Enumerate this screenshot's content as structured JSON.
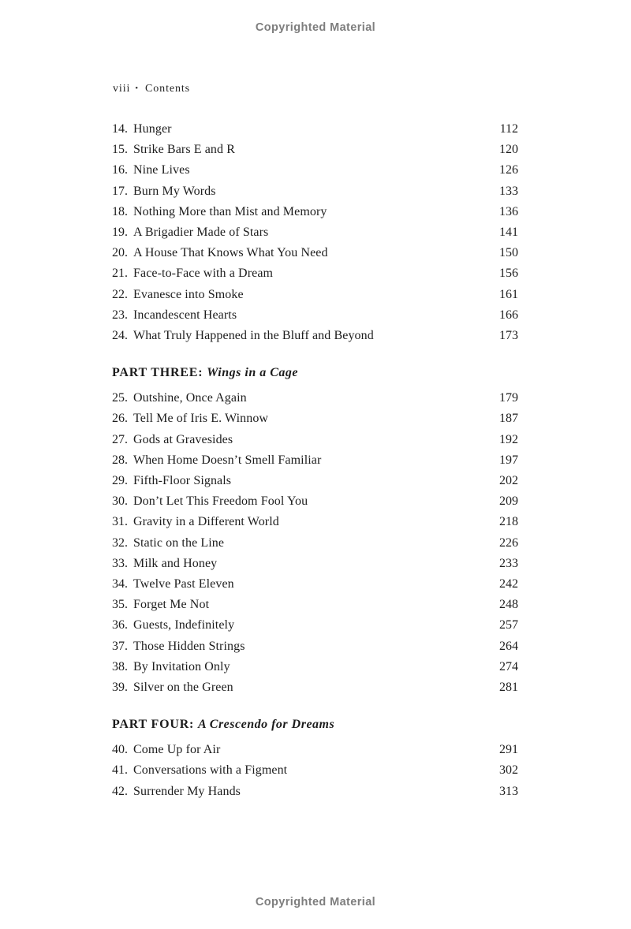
{
  "page": {
    "watermark_top": "Copyrighted Material",
    "watermark_bottom": "Copyrighted Material"
  },
  "header": {
    "folio": "viii",
    "separator": "•",
    "title": "Contents"
  },
  "toc": {
    "sections": [
      {
        "heading": null,
        "items": [
          {
            "num": "14.",
            "title": "Hunger",
            "page": "112"
          },
          {
            "num": "15.",
            "title": "Strike Bars E and R",
            "page": "120"
          },
          {
            "num": "16.",
            "title": "Nine Lives",
            "page": "126"
          },
          {
            "num": "17.",
            "title": "Burn My Words",
            "page": "133"
          },
          {
            "num": "18.",
            "title": "Nothing More than Mist and Memory",
            "page": "136"
          },
          {
            "num": "19.",
            "title": "A Brigadier Made of Stars",
            "page": "141"
          },
          {
            "num": "20.",
            "title": "A House That Knows What You Need",
            "page": "150"
          },
          {
            "num": "21.",
            "title": "Face-to-Face with a Dream",
            "page": "156"
          },
          {
            "num": "22.",
            "title": "Evanesce into Smoke",
            "page": "161"
          },
          {
            "num": "23.",
            "title": "Incandescent Hearts",
            "page": "166"
          },
          {
            "num": "24.",
            "title": "What Truly Happened in the Bluff and Beyond",
            "page": "173"
          }
        ]
      },
      {
        "heading": {
          "label": "PART THREE:",
          "title": "Wings in a Cage"
        },
        "items": [
          {
            "num": "25.",
            "title": "Outshine, Once Again",
            "page": "179"
          },
          {
            "num": "26.",
            "title": "Tell Me of Iris E. Winnow",
            "page": "187"
          },
          {
            "num": "27.",
            "title": "Gods at Gravesides",
            "page": "192"
          },
          {
            "num": "28.",
            "title": "When Home Doesn’t Smell Familiar",
            "page": "197"
          },
          {
            "num": "29.",
            "title": "Fifth-Floor Signals",
            "page": "202"
          },
          {
            "num": "30.",
            "title": "Don’t Let This Freedom Fool You",
            "page": "209"
          },
          {
            "num": "31.",
            "title": "Gravity in a Different World",
            "page": "218"
          },
          {
            "num": "32.",
            "title": "Static on the Line",
            "page": "226"
          },
          {
            "num": "33.",
            "title": "Milk and Honey",
            "page": "233"
          },
          {
            "num": "34.",
            "title": "Twelve Past Eleven",
            "page": "242"
          },
          {
            "num": "35.",
            "title": "Forget Me Not",
            "page": "248"
          },
          {
            "num": "36.",
            "title": "Guests, Indefinitely",
            "page": "257"
          },
          {
            "num": "37.",
            "title": "Those Hidden Strings",
            "page": "264"
          },
          {
            "num": "38.",
            "title": "By Invitation Only",
            "page": "274"
          },
          {
            "num": "39.",
            "title": "Silver on the Green",
            "page": "281"
          }
        ]
      },
      {
        "heading": {
          "label": "PART FOUR:",
          "title": "A Crescendo for Dreams"
        },
        "items": [
          {
            "num": "40.",
            "title": "Come Up for Air",
            "page": "291"
          },
          {
            "num": "41.",
            "title": "Conversations with a Figment",
            "page": "302"
          },
          {
            "num": "42.",
            "title": "Surrender My Hands",
            "page": "313"
          }
        ]
      }
    ]
  }
}
